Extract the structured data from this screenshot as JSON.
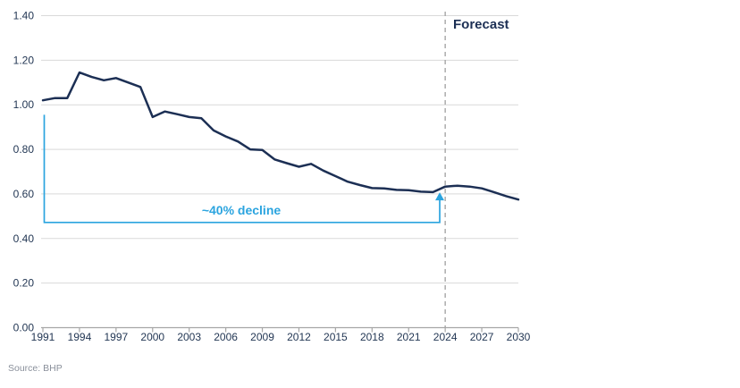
{
  "chart_data": {
    "type": "line",
    "title": "",
    "xlabel": "",
    "ylabel": "",
    "x": [
      1991,
      1992,
      1993,
      1994,
      1995,
      1996,
      1997,
      1998,
      1999,
      2000,
      2001,
      2002,
      2003,
      2004,
      2005,
      2006,
      2007,
      2008,
      2009,
      2010,
      2011,
      2012,
      2013,
      2014,
      2015,
      2016,
      2017,
      2018,
      2019,
      2020,
      2021,
      2022,
      2023,
      2024,
      2025,
      2026,
      2027,
      2028,
      2029,
      2030
    ],
    "values": [
      1.02,
      1.03,
      1.03,
      1.145,
      1.125,
      1.11,
      1.12,
      1.1,
      1.08,
      0.945,
      0.97,
      0.958,
      0.945,
      0.94,
      0.885,
      0.858,
      0.835,
      0.8,
      0.797,
      0.755,
      0.738,
      0.722,
      0.735,
      0.705,
      0.68,
      0.655,
      0.64,
      0.626,
      0.625,
      0.618,
      0.617,
      0.61,
      0.608,
      0.633,
      0.637,
      0.633,
      0.625,
      0.608,
      0.59,
      0.575
    ],
    "x_ticks": [
      1991,
      1994,
      1997,
      2000,
      2003,
      2006,
      2009,
      2012,
      2015,
      2018,
      2021,
      2024,
      2027,
      2030
    ],
    "y_ticks": [
      0.0,
      0.2,
      0.4,
      0.6,
      0.8,
      1.0,
      1.2,
      1.4
    ],
    "xlim": [
      1991,
      2030
    ],
    "ylim": [
      0,
      1.4
    ],
    "grid": "horizontal",
    "legend": "none",
    "forecast_label": "Forecast",
    "forecast_start_year": 2024,
    "decline_label": "~40% decline",
    "decline_bracket": {
      "from_year": 1991,
      "to_year": 2023.55,
      "top_value": 0.955,
      "bottom_value": 0.472,
      "arrow_tip_value": 0.607
    },
    "source": "Source: BHP",
    "colors": {
      "line": "#1C2F54",
      "annotation": "#2BA4DF",
      "gridline": "#D9D9D9",
      "axis": "#A6A6A6",
      "dashed_divider": "#A6A6A6",
      "tick_label": "#233754",
      "forecast_text": "#1C2F54",
      "decline_text": "#2BA4DF",
      "source_text": "#8A909B"
    }
  }
}
